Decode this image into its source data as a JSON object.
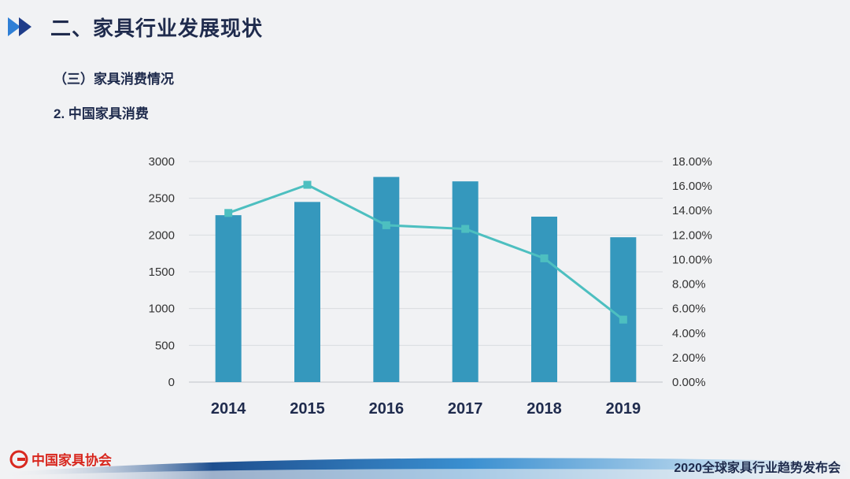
{
  "header": {
    "title": "二、家具行业发展现状",
    "subtitle": "（三）家具消费情况",
    "section": "2. 中国家具消费"
  },
  "footer": {
    "logo_text": "中国家具协会",
    "event": "2020全球家具行业趋势发布会"
  },
  "colors": {
    "bar": "#3598bd",
    "line": "#4dbfc0",
    "title": "#1f2b4d",
    "logo": "#d8281f"
  },
  "chart_data": {
    "type": "bar",
    "categories": [
      "2014",
      "2015",
      "2016",
      "2017",
      "2018",
      "2019"
    ],
    "series": [
      {
        "type": "bar",
        "axis": "left",
        "values": [
          2270,
          2450,
          2790,
          2730,
          2250,
          1970
        ]
      },
      {
        "type": "line",
        "axis": "right",
        "values": [
          13.8,
          16.1,
          12.8,
          12.5,
          10.1,
          5.1
        ]
      }
    ],
    "y_left": {
      "min": 0,
      "max": 3000,
      "ticks": [
        "0",
        "500",
        "1000",
        "1500",
        "2000",
        "2500",
        "3000"
      ]
    },
    "y_right": {
      "min": 0,
      "max": 18,
      "ticks": [
        "0.00%",
        "2.00%",
        "4.00%",
        "6.00%",
        "8.00%",
        "10.00%",
        "12.00%",
        "14.00%",
        "16.00%",
        "18.00%"
      ]
    },
    "grid": true,
    "legend": "none"
  }
}
